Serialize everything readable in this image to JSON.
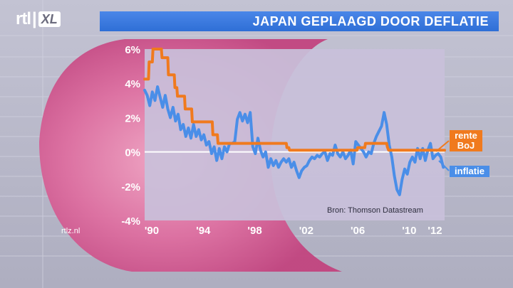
{
  "logo": {
    "brand": "rtl",
    "sub": "XL"
  },
  "title": "JAPAN GEPLAAGD DOOR DEFLATIE",
  "site": "rtlz.nl",
  "source": "Bron: Thomson Datastream",
  "legend": {
    "rente_line1": "rente",
    "rente_line2": "BoJ",
    "inflatie": "inflatie"
  },
  "colors": {
    "rente": "#f07a1e",
    "inflatie": "#4a8ee8",
    "title_bar": "#2f6fd6",
    "plot_bg": "#c9c0da"
  },
  "chart_data": {
    "type": "line",
    "title": "JAPAN GEPLAAGD DOOR DEFLATIE",
    "xlim": [
      1990,
      2013.3
    ],
    "ylim": [
      -4,
      6
    ],
    "x_ticks": [
      {
        "value": 1990,
        "label": "'90"
      },
      {
        "value": 1994,
        "label": "'94"
      },
      {
        "value": 1998,
        "label": "'98"
      },
      {
        "value": 2002,
        "label": "'02"
      },
      {
        "value": 2006,
        "label": "'06"
      },
      {
        "value": 2010,
        "label": "'10"
      },
      {
        "value": 2012,
        "label": "'12"
      }
    ],
    "y_ticks": [
      {
        "value": 6,
        "label": "6%"
      },
      {
        "value": 4,
        "label": "4%"
      },
      {
        "value": 2,
        "label": "2%"
      },
      {
        "value": 0,
        "label": "0%"
      },
      {
        "value": -2,
        "label": "-2%"
      },
      {
        "value": -4,
        "label": "-4%"
      }
    ],
    "zero_line": true,
    "series": [
      {
        "name": "rente BoJ",
        "color": "#f07a1e",
        "points": [
          [
            1990.0,
            4.25
          ],
          [
            1990.3,
            4.25
          ],
          [
            1990.35,
            5.25
          ],
          [
            1990.6,
            5.25
          ],
          [
            1990.65,
            6.0
          ],
          [
            1991.3,
            6.0
          ],
          [
            1991.35,
            5.5
          ],
          [
            1991.8,
            5.5
          ],
          [
            1991.85,
            4.5
          ],
          [
            1992.3,
            4.5
          ],
          [
            1992.35,
            3.75
          ],
          [
            1992.5,
            3.75
          ],
          [
            1992.55,
            3.25
          ],
          [
            1993.1,
            3.25
          ],
          [
            1993.15,
            2.5
          ],
          [
            1993.65,
            2.5
          ],
          [
            1993.7,
            1.75
          ],
          [
            1995.25,
            1.75
          ],
          [
            1995.3,
            1.0
          ],
          [
            1995.65,
            1.0
          ],
          [
            1995.7,
            0.5
          ],
          [
            2001.0,
            0.5
          ],
          [
            2001.05,
            0.25
          ],
          [
            2001.2,
            0.25
          ],
          [
            2001.25,
            0.1
          ],
          [
            2006.5,
            0.1
          ],
          [
            2006.55,
            0.25
          ],
          [
            2007.1,
            0.25
          ],
          [
            2007.15,
            0.5
          ],
          [
            2008.8,
            0.5
          ],
          [
            2008.85,
            0.3
          ],
          [
            2008.95,
            0.1
          ],
          [
            2013.3,
            0.1
          ]
        ]
      },
      {
        "name": "inflatie",
        "color": "#4a8ee8",
        "points": [
          [
            1990.0,
            3.6
          ],
          [
            1990.2,
            3.3
          ],
          [
            1990.4,
            2.7
          ],
          [
            1990.6,
            3.5
          ],
          [
            1990.8,
            3.0
          ],
          [
            1991.0,
            3.8
          ],
          [
            1991.2,
            3.2
          ],
          [
            1991.4,
            2.6
          ],
          [
            1991.6,
            3.3
          ],
          [
            1991.8,
            2.5
          ],
          [
            1992.0,
            2.0
          ],
          [
            1992.2,
            2.6
          ],
          [
            1992.4,
            1.8
          ],
          [
            1992.6,
            2.2
          ],
          [
            1992.8,
            1.3
          ],
          [
            1993.0,
            1.6
          ],
          [
            1993.2,
            0.9
          ],
          [
            1993.4,
            1.4
          ],
          [
            1993.6,
            0.8
          ],
          [
            1993.8,
            1.6
          ],
          [
            1994.0,
            0.9
          ],
          [
            1994.2,
            1.3
          ],
          [
            1994.4,
            0.7
          ],
          [
            1994.6,
            1.0
          ],
          [
            1994.8,
            0.4
          ],
          [
            1995.0,
            0.6
          ],
          [
            1995.2,
            -0.1
          ],
          [
            1995.4,
            0.3
          ],
          [
            1995.6,
            -0.5
          ],
          [
            1995.8,
            0.2
          ],
          [
            1996.0,
            -0.4
          ],
          [
            1996.2,
            0.3
          ],
          [
            1996.4,
            0.0
          ],
          [
            1996.6,
            0.5
          ],
          [
            1996.8,
            0.5
          ],
          [
            1997.0,
            0.6
          ],
          [
            1997.2,
            1.9
          ],
          [
            1997.4,
            2.3
          ],
          [
            1997.6,
            1.8
          ],
          [
            1997.8,
            2.2
          ],
          [
            1998.0,
            1.7
          ],
          [
            1998.2,
            2.3
          ],
          [
            1998.4,
            0.3
          ],
          [
            1998.6,
            -0.1
          ],
          [
            1998.8,
            0.8
          ],
          [
            1999.0,
            0.1
          ],
          [
            1999.2,
            -0.3
          ],
          [
            1999.4,
            0.0
          ],
          [
            1999.6,
            -0.9
          ],
          [
            1999.8,
            -0.4
          ],
          [
            2000.0,
            -0.8
          ],
          [
            2000.2,
            -0.5
          ],
          [
            2000.4,
            -0.9
          ],
          [
            2000.6,
            -0.6
          ],
          [
            2000.8,
            -0.4
          ],
          [
            2001.0,
            -0.6
          ],
          [
            2001.2,
            -0.4
          ],
          [
            2001.4,
            -0.9
          ],
          [
            2001.6,
            -0.6
          ],
          [
            2001.8,
            -1.1
          ],
          [
            2002.0,
            -1.5
          ],
          [
            2002.2,
            -1.1
          ],
          [
            2002.4,
            -0.9
          ],
          [
            2002.6,
            -0.8
          ],
          [
            2002.8,
            -0.5
          ],
          [
            2003.0,
            -0.3
          ],
          [
            2003.2,
            -0.4
          ],
          [
            2003.4,
            -0.2
          ],
          [
            2003.6,
            -0.3
          ],
          [
            2003.8,
            -0.1
          ],
          [
            2004.0,
            0.0
          ],
          [
            2004.2,
            -0.5
          ],
          [
            2004.4,
            -0.1
          ],
          [
            2004.6,
            -0.2
          ],
          [
            2004.8,
            0.4
          ],
          [
            2005.0,
            -0.1
          ],
          [
            2005.2,
            -0.3
          ],
          [
            2005.4,
            0.0
          ],
          [
            2005.6,
            -0.4
          ],
          [
            2005.8,
            -0.2
          ],
          [
            2006.0,
            0.1
          ],
          [
            2006.2,
            -0.7
          ],
          [
            2006.4,
            0.6
          ],
          [
            2006.6,
            0.4
          ],
          [
            2006.8,
            0.2
          ],
          [
            2007.0,
            0.0
          ],
          [
            2007.2,
            -0.3
          ],
          [
            2007.4,
            0.0
          ],
          [
            2007.6,
            -0.1
          ],
          [
            2007.8,
            0.5
          ],
          [
            2008.0,
            0.9
          ],
          [
            2008.2,
            1.2
          ],
          [
            2008.4,
            1.5
          ],
          [
            2008.6,
            2.3
          ],
          [
            2008.8,
            1.6
          ],
          [
            2009.0,
            0.4
          ],
          [
            2009.2,
            -0.3
          ],
          [
            2009.4,
            -1.4
          ],
          [
            2009.6,
            -2.2
          ],
          [
            2009.8,
            -2.5
          ],
          [
            2010.0,
            -1.6
          ],
          [
            2010.2,
            -1.0
          ],
          [
            2010.4,
            -1.3
          ],
          [
            2010.6,
            -0.6
          ],
          [
            2010.8,
            -0.3
          ],
          [
            2011.0,
            -0.6
          ],
          [
            2011.2,
            0.2
          ],
          [
            2011.4,
            -0.4
          ],
          [
            2011.6,
            0.2
          ],
          [
            2011.8,
            -0.5
          ],
          [
            2012.0,
            0.1
          ],
          [
            2012.2,
            0.5
          ],
          [
            2012.4,
            -0.4
          ],
          [
            2012.6,
            -0.2
          ],
          [
            2012.8,
            -0.1
          ],
          [
            2013.0,
            -0.3
          ],
          [
            2013.2,
            -0.9
          ]
        ]
      }
    ]
  }
}
